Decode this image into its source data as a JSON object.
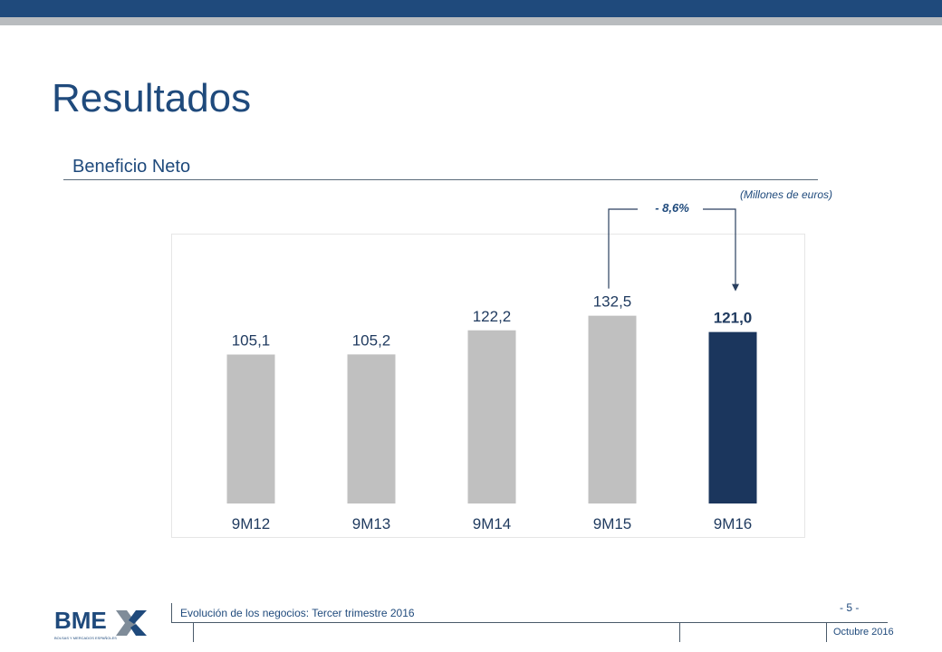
{
  "header": {
    "title": "Resultados",
    "subtitle": "Beneficio Neto",
    "units": "(Millones de euros)"
  },
  "chart_data": {
    "type": "bar",
    "categories": [
      "9M12",
      "9M13",
      "9M14",
      "9M15",
      "9M16"
    ],
    "values": [
      105.1,
      105.2,
      122.2,
      132.5,
      121.0
    ],
    "value_labels": [
      "105,1",
      "105,2",
      "122,2",
      "132,5",
      "121,0"
    ],
    "ylim": [
      0,
      140
    ],
    "colors": [
      "#c0c0c0",
      "#c0c0c0",
      "#c0c0c0",
      "#c0c0c0",
      "#1b365d"
    ],
    "highlight_index": 4,
    "annotation": {
      "text": "- 8,6%",
      "from": "9M15",
      "to": "9M16"
    },
    "grid": false
  },
  "footer": {
    "logo_text": "BME",
    "logo_tagline": "BOLSAS Y MERCADOS ESPAÑOLES",
    "section_text": "Evolución de los negocios: Tercer trimestre 2016",
    "page_number": "- 5 -",
    "date": "Octubre 2016"
  }
}
